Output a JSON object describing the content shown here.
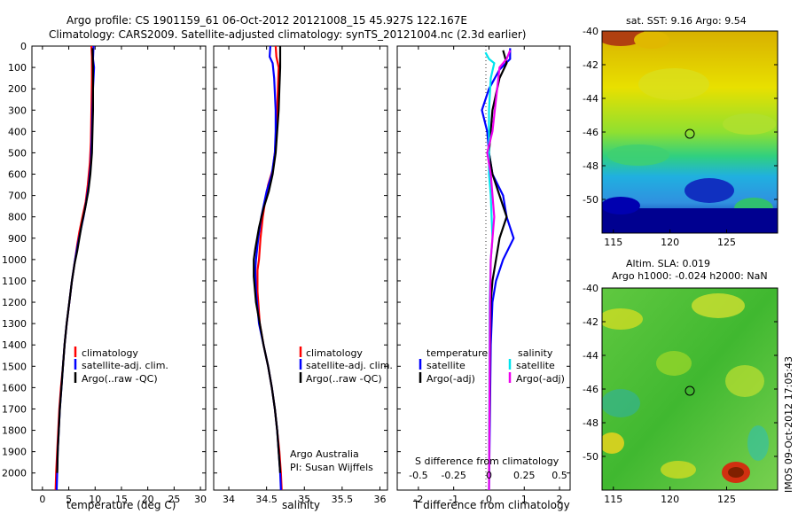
{
  "title": {
    "line1": "Argo profile: CS 1901159_61 06-Oct-2012 20121008_15 45.927S 122.167E",
    "line2": "Climatology: CARS2009. Satellite-adjusted climatology: synTS_20121004.nc (2.3d earlier)"
  },
  "credit": {
    "line1": "Argo Australia",
    "line2": "PI: Susan Wijffels"
  },
  "watermark": "IMOS 09-Oct-2012 17:05:43",
  "colors": {
    "climatology": "#ff0000",
    "satellite": "#0000ff",
    "argo": "#000000",
    "sal_satellite": "#00e5ee",
    "sal_argo": "#ee00ee"
  },
  "chart_data": [
    {
      "id": "temperature",
      "type": "line",
      "xlabel": "temperature (deg C)",
      "xlim": [
        -2,
        31
      ],
      "xticks": [
        "0",
        "5",
        "10",
        "15",
        "20",
        "25",
        "30"
      ],
      "ylim": [
        0,
        2080
      ],
      "yticks": [
        "0",
        "100",
        "200",
        "300",
        "400",
        "500",
        "600",
        "700",
        "800",
        "900",
        "1000",
        "1100",
        "1200",
        "1300",
        "1400",
        "1500",
        "1600",
        "1700",
        "1800",
        "1900",
        "2000"
      ],
      "legend": [
        "climatology",
        "satellite-adj. clim.",
        "Argo(..raw -QC)"
      ],
      "series": [
        {
          "name": "climatology",
          "color": "#ff0000",
          "points": [
            [
              9.3,
              0
            ],
            [
              9.4,
              50
            ],
            [
              9.4,
              150
            ],
            [
              9.3,
              300
            ],
            [
              9.2,
              450
            ],
            [
              9.0,
              550
            ],
            [
              8.6,
              650
            ],
            [
              8.2,
              730
            ],
            [
              7.6,
              800
            ],
            [
              7.0,
              870
            ],
            [
              6.6,
              930
            ],
            [
              6.2,
              1000
            ],
            [
              5.6,
              1100
            ],
            [
              5.1,
              1200
            ],
            [
              4.6,
              1300
            ],
            [
              4.2,
              1400
            ],
            [
              3.9,
              1500
            ],
            [
              3.5,
              1600
            ],
            [
              3.2,
              1700
            ],
            [
              3.0,
              1800
            ],
            [
              2.8,
              1900
            ],
            [
              2.6,
              2000
            ],
            [
              2.5,
              2080
            ]
          ]
        },
        {
          "name": "satellite-adj. clim.",
          "color": "#0000ff",
          "points": [
            [
              9.7,
              0
            ],
            [
              9.6,
              60
            ],
            [
              9.8,
              100
            ],
            [
              9.6,
              200
            ],
            [
              9.4,
              400
            ],
            [
              9.2,
              550
            ],
            [
              8.8,
              650
            ],
            [
              8.3,
              730
            ],
            [
              7.8,
              800
            ],
            [
              7.2,
              870
            ],
            [
              6.7,
              930
            ],
            [
              6.2,
              1000
            ],
            [
              5.6,
              1100
            ],
            [
              5.1,
              1200
            ],
            [
              4.6,
              1300
            ],
            [
              4.2,
              1400
            ],
            [
              3.9,
              1500
            ],
            [
              3.6,
              1600
            ],
            [
              3.3,
              1700
            ],
            [
              3.1,
              1800
            ],
            [
              2.9,
              1900
            ],
            [
              2.8,
              2000
            ],
            [
              2.7,
              2080
            ]
          ]
        },
        {
          "name": "Argo(..raw -QC)",
          "color": "#000000",
          "points": [
            [
              9.5,
              10
            ],
            [
              9.6,
              100
            ],
            [
              9.6,
              300
            ],
            [
              9.4,
              500
            ],
            [
              9.1,
              600
            ],
            [
              8.7,
              680
            ],
            [
              8.1,
              760
            ],
            [
              7.5,
              830
            ],
            [
              7.0,
              900
            ],
            [
              6.6,
              960
            ],
            [
              6.1,
              1020
            ],
            [
              5.6,
              1100
            ],
            [
              5.1,
              1200
            ],
            [
              4.6,
              1300
            ],
            [
              4.2,
              1400
            ],
            [
              3.9,
              1500
            ],
            [
              3.6,
              1600
            ],
            [
              3.3,
              1700
            ],
            [
              3.1,
              1800
            ],
            [
              2.9,
              1900
            ],
            [
              2.8,
              2000
            ]
          ]
        }
      ]
    },
    {
      "id": "salinity",
      "type": "line",
      "xlabel": "salinity",
      "xlim": [
        33.8,
        36.1
      ],
      "xticks": [
        "34",
        "34.5",
        "35",
        "35.5",
        "36"
      ],
      "ylim": [
        0,
        2080
      ],
      "legend": [
        "climatology",
        "satellite-adj. clim.",
        "Argo(..raw -QC)"
      ],
      "series": [
        {
          "name": "climatology",
          "color": "#ff0000",
          "points": [
            [
              34.62,
              0
            ],
            [
              34.63,
              50
            ],
            [
              34.66,
              100
            ],
            [
              34.65,
              200
            ],
            [
              34.64,
              300
            ],
            [
              34.63,
              400
            ],
            [
              34.61,
              500
            ],
            [
              34.58,
              580
            ],
            [
              34.52,
              650
            ],
            [
              34.48,
              730
            ],
            [
              34.45,
              800
            ],
            [
              34.42,
              900
            ],
            [
              34.4,
              1000
            ],
            [
              34.38,
              1050
            ],
            [
              34.38,
              1150
            ],
            [
              34.41,
              1300
            ],
            [
              34.46,
              1400
            ],
            [
              34.52,
              1500
            ],
            [
              34.57,
              1600
            ],
            [
              34.61,
              1700
            ],
            [
              34.64,
              1800
            ],
            [
              34.67,
              1900
            ],
            [
              34.69,
              2000
            ],
            [
              34.7,
              2080
            ]
          ]
        },
        {
          "name": "satellite-adj. clim.",
          "color": "#0000ff",
          "points": [
            [
              34.55,
              0
            ],
            [
              34.54,
              50
            ],
            [
              34.58,
              80
            ],
            [
              34.6,
              150
            ],
            [
              34.62,
              300
            ],
            [
              34.62,
              400
            ],
            [
              34.61,
              500
            ],
            [
              34.57,
              600
            ],
            [
              34.5,
              680
            ],
            [
              34.43,
              800
            ],
            [
              34.39,
              900
            ],
            [
              34.36,
              1000
            ],
            [
              34.35,
              1050
            ],
            [
              34.36,
              1150
            ],
            [
              34.4,
              1300
            ],
            [
              34.46,
              1400
            ],
            [
              34.52,
              1500
            ],
            [
              34.57,
              1600
            ],
            [
              34.61,
              1700
            ],
            [
              34.64,
              1800
            ],
            [
              34.66,
              1900
            ],
            [
              34.68,
              2000
            ],
            [
              34.69,
              2080
            ]
          ]
        },
        {
          "name": "Argo(..raw -QC)",
          "color": "#000000",
          "points": [
            [
              34.68,
              0
            ],
            [
              34.68,
              100
            ],
            [
              34.67,
              200
            ],
            [
              34.66,
              300
            ],
            [
              34.64,
              400
            ],
            [
              34.62,
              500
            ],
            [
              34.58,
              600
            ],
            [
              34.53,
              680
            ],
            [
              34.46,
              760
            ],
            [
              34.4,
              850
            ],
            [
              34.35,
              950
            ],
            [
              34.33,
              1000
            ],
            [
              34.33,
              1080
            ],
            [
              34.36,
              1200
            ],
            [
              34.41,
              1300
            ],
            [
              34.46,
              1400
            ],
            [
              34.52,
              1500
            ],
            [
              34.57,
              1600
            ],
            [
              34.61,
              1700
            ],
            [
              34.64,
              1800
            ],
            [
              34.66,
              1900
            ],
            [
              34.68,
              2000
            ]
          ]
        }
      ]
    },
    {
      "id": "difference",
      "type": "line",
      "xlabel": "T difference from climatology",
      "x2label": "S difference from climatology",
      "xlim": [
        -2.6,
        2.3
      ],
      "xticks": [
        "-2",
        "-1",
        "0",
        "1",
        "2"
      ],
      "x2ticks": [
        "-0.5",
        "-0.25",
        "0",
        "0.25",
        "0.5"
      ],
      "ylim": [
        0,
        2080
      ],
      "legend_groups": [
        {
          "heading": "temperature",
          "items": [
            "satellite",
            "Argo(-adj)"
          ]
        },
        {
          "heading": "salinity",
          "items": [
            "satellite",
            "Argo(-adj)"
          ]
        }
      ],
      "series": [
        {
          "name": "temperature satellite",
          "color": "#0000ff",
          "points": [
            [
              0.6,
              10
            ],
            [
              0.6,
              60
            ],
            [
              0.3,
              110
            ],
            [
              0,
              200
            ],
            [
              -0.2,
              300
            ],
            [
              -0.05,
              400
            ],
            [
              0,
              500
            ],
            [
              0.1,
              600
            ],
            [
              0.4,
              700
            ],
            [
              0.5,
              800
            ],
            [
              0.7,
              900
            ],
            [
              0.4,
              1000
            ],
            [
              0.2,
              1100
            ],
            [
              0.1,
              1200
            ],
            [
              0.05,
              1400
            ],
            [
              0,
              2080
            ]
          ]
        },
        {
          "name": "temperature Argo(-adj)",
          "color": "#000000",
          "points": [
            [
              0.4,
              20
            ],
            [
              0.5,
              80
            ],
            [
              0.3,
              150
            ],
            [
              0.1,
              300
            ],
            [
              0.05,
              400
            ],
            [
              0,
              500
            ],
            [
              0.1,
              600
            ],
            [
              0.3,
              700
            ],
            [
              0.5,
              800
            ],
            [
              0.3,
              900
            ],
            [
              0.2,
              1000
            ],
            [
              0.1,
              1100
            ],
            [
              0.05,
              1200
            ],
            [
              0.03,
              1400
            ],
            [
              0,
              2000
            ]
          ]
        },
        {
          "name": "salinity satellite",
          "color": "#00e5ee",
          "points": [
            [
              -0.1,
              30
            ],
            [
              0,
              60
            ],
            [
              0.15,
              80
            ],
            [
              0.05,
              150
            ],
            [
              0,
              300
            ],
            [
              0,
              600
            ],
            [
              0.05,
              700
            ],
            [
              0.1,
              900
            ],
            [
              0.05,
              1000
            ],
            [
              0.02,
              1200
            ],
            [
              0,
              2080
            ]
          ]
        },
        {
          "name": "salinity Argo(-adj)",
          "color": "#ee00ee",
          "points": [
            [
              0.6,
              20
            ],
            [
              0.5,
              60
            ],
            [
              0.3,
              100
            ],
            [
              0.2,
              250
            ],
            [
              0.1,
              400
            ],
            [
              -0.05,
              500
            ],
            [
              0.05,
              600
            ],
            [
              0.15,
              800
            ],
            [
              0.05,
              1000
            ],
            [
              0.03,
              1200
            ],
            [
              0,
              2080
            ]
          ]
        }
      ]
    },
    {
      "id": "sst-map",
      "type": "heatmap",
      "title": "sat. SST: 9.16  Argo: 9.54",
      "xticks": [
        "115",
        "120",
        "125"
      ],
      "yticks": [
        "-40",
        "-42",
        "-44",
        "-46",
        "-48",
        "-50"
      ],
      "xlim": [
        114,
        129.5
      ],
      "ylim": [
        -52,
        -40
      ],
      "marker": [
        122.167,
        -45.927
      ]
    },
    {
      "id": "sla-map",
      "type": "heatmap",
      "title": "Altim. SLA: 0.019",
      "subtitle": "Argo h1000: -0.024  h2000: NaN",
      "xticks": [
        "115",
        "120",
        "125"
      ],
      "yticks": [
        "-40",
        "-42",
        "-44",
        "-46",
        "-48",
        "-50"
      ],
      "xlim": [
        114,
        129.5
      ],
      "ylim": [
        -52,
        -40
      ],
      "marker": [
        122.167,
        -45.927
      ]
    }
  ]
}
